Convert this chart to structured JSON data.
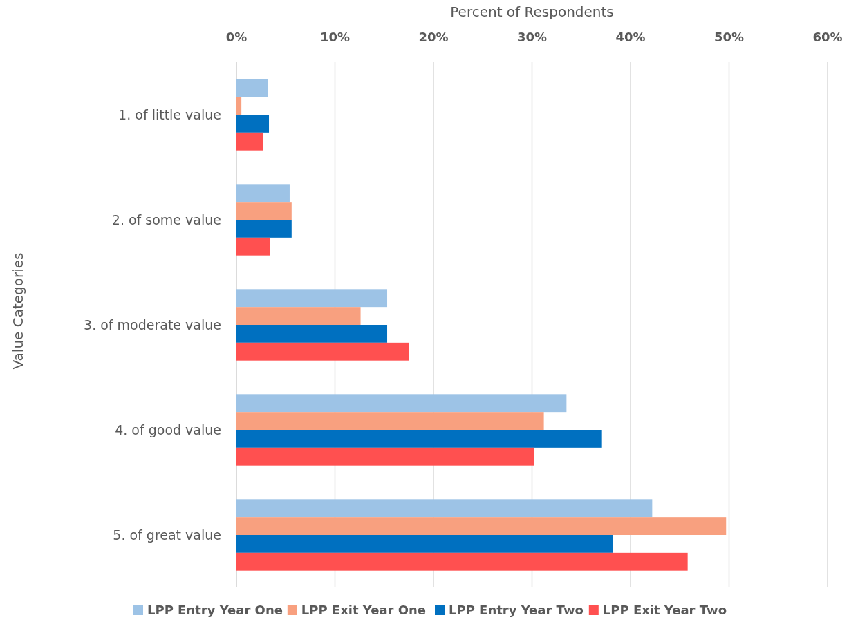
{
  "chart_data": {
    "type": "bar",
    "orientation": "horizontal",
    "xlabel": "Percent of Respondents",
    "ylabel": "Value Categories",
    "categories": [
      "1. of little value",
      "2.  of some value",
      "3. of moderate value",
      "4. of good value",
      "5. of great value"
    ],
    "series": [
      {
        "name": "LPP Entry Year One",
        "color": "#9dc3e6",
        "values": [
          3.2,
          5.4,
          15.3,
          33.5,
          42.2
        ]
      },
      {
        "name": "LPP Exit Year One",
        "color": "#f8a07f",
        "values": [
          0.5,
          5.6,
          12.6,
          31.2,
          49.7
        ]
      },
      {
        "name": "LPP Entry Year Two",
        "color": "#0070c0",
        "values": [
          3.3,
          5.6,
          15.3,
          37.1,
          38.2
        ]
      },
      {
        "name": "LPP Exit Year Two",
        "color": "#ff5050",
        "values": [
          2.7,
          3.4,
          17.5,
          30.2,
          45.8
        ]
      }
    ],
    "xlim": [
      0,
      60
    ],
    "xticks": [
      {
        "value": 0,
        "label": "0%"
      },
      {
        "value": 10,
        "label": "10%"
      },
      {
        "value": 20,
        "label": "20%"
      },
      {
        "value": 30,
        "label": "30%"
      },
      {
        "value": 40,
        "label": "40%"
      },
      {
        "value": 50,
        "label": "50%"
      },
      {
        "value": 60,
        "label": "60%"
      }
    ],
    "grid": "x",
    "legend": "bottom"
  }
}
